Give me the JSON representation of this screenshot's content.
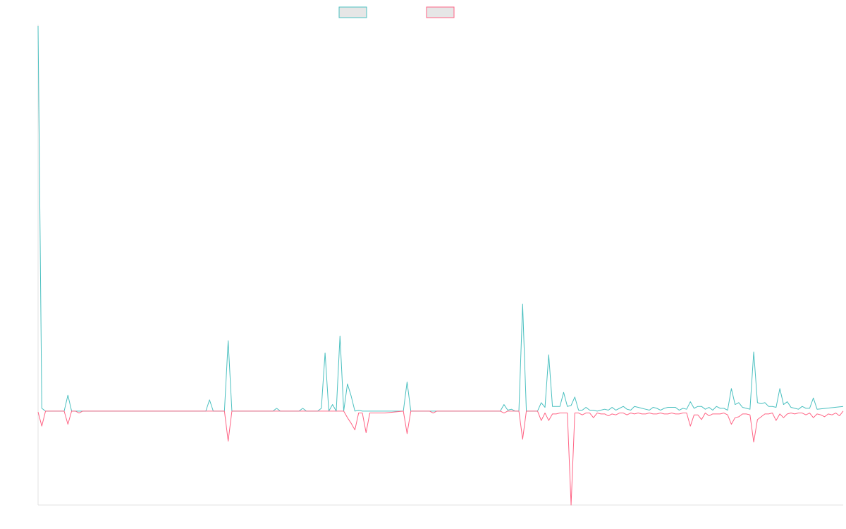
{
  "chart_data": {
    "type": "line",
    "title": "",
    "xlabel": "",
    "ylabel": "",
    "grid": false,
    "legend_position": "top",
    "colors": {
      "series_a": "#4bc0c0",
      "series_b": "#ff6384",
      "swatch_fill": "#e6e6e6",
      "axis": "#e0e0e0"
    },
    "x_count": 217,
    "ylim": [
      -1,
      4.1
    ],
    "series": [
      {
        "color": "#4bc0c0",
        "points": [
          [
            0,
            4.1
          ],
          [
            1,
            0.03
          ],
          [
            2,
            0
          ],
          [
            7,
            0
          ],
          [
            8,
            0.17
          ],
          [
            9,
            0
          ],
          [
            45,
            0
          ],
          [
            46,
            0.12
          ],
          [
            47,
            0
          ],
          [
            50,
            0
          ],
          [
            51,
            0.75
          ],
          [
            52,
            0
          ],
          [
            63,
            0
          ],
          [
            64,
            0.03
          ],
          [
            65,
            0
          ],
          [
            70,
            0
          ],
          [
            71,
            0.03
          ],
          [
            72,
            0
          ],
          [
            75,
            0
          ],
          [
            76,
            0.03
          ],
          [
            77,
            0.62
          ],
          [
            78,
            0
          ],
          [
            79,
            0.07
          ],
          [
            80,
            0
          ],
          [
            81,
            0.8
          ],
          [
            82,
            0
          ],
          [
            83,
            0.29
          ],
          [
            84,
            0.16
          ],
          [
            85,
            0
          ],
          [
            86,
            0.01
          ],
          [
            87,
            0
          ],
          [
            98,
            0
          ],
          [
            99,
            0.31
          ],
          [
            100,
            0
          ],
          [
            124,
            0
          ],
          [
            125,
            0.07
          ],
          [
            126,
            0.01
          ],
          [
            127,
            0.02
          ],
          [
            128,
            0
          ],
          [
            129,
            0
          ],
          [
            130,
            1.14
          ],
          [
            131,
            0
          ],
          [
            134,
            0
          ],
          [
            135,
            0.09
          ],
          [
            136,
            0.04
          ],
          [
            137,
            0.6
          ],
          [
            138,
            0.05
          ],
          [
            139,
            0.05
          ],
          [
            140,
            0.05
          ],
          [
            141,
            0.2
          ],
          [
            142,
            0.05
          ],
          [
            143,
            0.06
          ],
          [
            144,
            0.15
          ],
          [
            145,
            0.01
          ],
          [
            146,
            0.01
          ],
          [
            147,
            0.04
          ],
          [
            148,
            0.01
          ],
          [
            149,
            0.01
          ],
          [
            150,
            0
          ],
          [
            151,
            0.01
          ],
          [
            152,
            0.02
          ],
          [
            153,
            0.01
          ],
          [
            154,
            0.04
          ],
          [
            155,
            0.01
          ],
          [
            156,
            0.03
          ],
          [
            157,
            0.05
          ],
          [
            158,
            0.02
          ],
          [
            159,
            0.01
          ],
          [
            160,
            0.05
          ],
          [
            161,
            0.04
          ],
          [
            162,
            0.03
          ],
          [
            163,
            0.02
          ],
          [
            164,
            0.01
          ],
          [
            165,
            0.04
          ],
          [
            166,
            0.03
          ],
          [
            167,
            0.01
          ],
          [
            168,
            0.03
          ],
          [
            169,
            0.04
          ],
          [
            170,
            0.04
          ],
          [
            171,
            0.04
          ],
          [
            172,
            0.01
          ],
          [
            173,
            0.03
          ],
          [
            174,
            0.02
          ],
          [
            175,
            0.1
          ],
          [
            176,
            0.03
          ],
          [
            177,
            0.05
          ],
          [
            178,
            0.05
          ],
          [
            179,
            0.02
          ],
          [
            180,
            0.04
          ],
          [
            181,
            0.01
          ],
          [
            182,
            0.05
          ],
          [
            183,
            0.03
          ],
          [
            184,
            0.03
          ],
          [
            185,
            0.01
          ],
          [
            186,
            0.24
          ],
          [
            187,
            0.07
          ],
          [
            188,
            0.09
          ],
          [
            189,
            0.04
          ],
          [
            190,
            0.03
          ],
          [
            191,
            0.02
          ],
          [
            192,
            0.63
          ],
          [
            193,
            0.09
          ],
          [
            194,
            0.08
          ],
          [
            195,
            0.09
          ],
          [
            196,
            0.05
          ],
          [
            197,
            0.05
          ],
          [
            198,
            0.04
          ],
          [
            199,
            0.24
          ],
          [
            200,
            0.07
          ],
          [
            201,
            0.1
          ],
          [
            202,
            0.04
          ],
          [
            203,
            0.03
          ],
          [
            204,
            0.02
          ],
          [
            205,
            0.05
          ],
          [
            206,
            0.03
          ],
          [
            207,
            0.03
          ],
          [
            208,
            0.14
          ],
          [
            209,
            0.02
          ],
          [
            216,
            0.05
          ]
        ]
      },
      {
        "color": "#ff6384",
        "points": [
          [
            0,
            -0.01
          ],
          [
            1,
            -0.16
          ],
          [
            2,
            0
          ],
          [
            7,
            0
          ],
          [
            8,
            -0.14
          ],
          [
            9,
            0
          ],
          [
            10,
            0
          ],
          [
            11,
            -0.02
          ],
          [
            12,
            0
          ],
          [
            50,
            0
          ],
          [
            51,
            -0.32
          ],
          [
            52,
            0
          ],
          [
            82,
            0
          ],
          [
            83,
            -0.07
          ],
          [
            84,
            -0.13
          ],
          [
            85,
            -0.2
          ],
          [
            86,
            -0.02
          ],
          [
            87,
            -0.02
          ],
          [
            88,
            -0.23
          ],
          [
            89,
            -0.02
          ],
          [
            90,
            -0.02
          ],
          [
            91,
            -0.02
          ],
          [
            92,
            -0.02
          ],
          [
            93,
            -0.02
          ],
          [
            98,
            0
          ],
          [
            99,
            -0.24
          ],
          [
            100,
            0
          ],
          [
            105,
            0
          ],
          [
            106,
            -0.02
          ],
          [
            107,
            0
          ],
          [
            124,
            0
          ],
          [
            125,
            -0.02
          ],
          [
            126,
            0
          ],
          [
            129,
            0
          ],
          [
            130,
            -0.3
          ],
          [
            131,
            0
          ],
          [
            134,
            0
          ],
          [
            135,
            -0.1
          ],
          [
            136,
            -0.02
          ],
          [
            137,
            -0.1
          ],
          [
            138,
            -0.03
          ],
          [
            139,
            -0.03
          ],
          [
            140,
            -0.02
          ],
          [
            141,
            -0.02
          ],
          [
            142,
            -0.02
          ],
          [
            143,
            -1.0
          ],
          [
            144,
            -0.02
          ],
          [
            145,
            -0.02
          ],
          [
            146,
            -0.04
          ],
          [
            147,
            -0.02
          ],
          [
            148,
            -0.02
          ],
          [
            149,
            -0.07
          ],
          [
            150,
            -0.02
          ],
          [
            151,
            -0.03
          ],
          [
            152,
            -0.03
          ],
          [
            153,
            -0.05
          ],
          [
            154,
            -0.03
          ],
          [
            155,
            -0.04
          ],
          [
            156,
            -0.02
          ],
          [
            157,
            -0.02
          ],
          [
            158,
            -0.04
          ],
          [
            159,
            -0.02
          ],
          [
            160,
            -0.03
          ],
          [
            161,
            -0.02
          ],
          [
            162,
            -0.03
          ],
          [
            163,
            -0.03
          ],
          [
            164,
            -0.02
          ],
          [
            165,
            -0.03
          ],
          [
            166,
            -0.03
          ],
          [
            167,
            -0.02
          ],
          [
            168,
            -0.03
          ],
          [
            169,
            -0.03
          ],
          [
            170,
            -0.02
          ],
          [
            171,
            -0.03
          ],
          [
            172,
            -0.03
          ],
          [
            173,
            -0.02
          ],
          [
            174,
            -0.02
          ],
          [
            175,
            -0.16
          ],
          [
            176,
            -0.04
          ],
          [
            177,
            -0.04
          ],
          [
            178,
            -0.09
          ],
          [
            179,
            -0.02
          ],
          [
            180,
            -0.05
          ],
          [
            181,
            -0.03
          ],
          [
            182,
            -0.03
          ],
          [
            183,
            -0.03
          ],
          [
            184,
            -0.02
          ],
          [
            185,
            -0.04
          ],
          [
            186,
            -0.14
          ],
          [
            187,
            -0.07
          ],
          [
            188,
            -0.06
          ],
          [
            189,
            -0.03
          ],
          [
            190,
            -0.03
          ],
          [
            191,
            -0.04
          ],
          [
            192,
            -0.33
          ],
          [
            193,
            -0.09
          ],
          [
            194,
            -0.06
          ],
          [
            195,
            -0.03
          ],
          [
            196,
            -0.03
          ],
          [
            197,
            -0.02
          ],
          [
            198,
            -0.1
          ],
          [
            199,
            -0.03
          ],
          [
            200,
            -0.07
          ],
          [
            201,
            -0.03
          ],
          [
            202,
            -0.02
          ],
          [
            203,
            -0.03
          ],
          [
            204,
            -0.02
          ],
          [
            205,
            -0.02
          ],
          [
            206,
            -0.04
          ],
          [
            207,
            -0.02
          ],
          [
            208,
            -0.07
          ],
          [
            209,
            -0.03
          ],
          [
            210,
            -0.04
          ],
          [
            211,
            -0.06
          ],
          [
            212,
            -0.03
          ],
          [
            213,
            -0.04
          ],
          [
            214,
            -0.02
          ],
          [
            215,
            -0.05
          ],
          [
            216,
            0
          ]
        ]
      }
    ]
  }
}
